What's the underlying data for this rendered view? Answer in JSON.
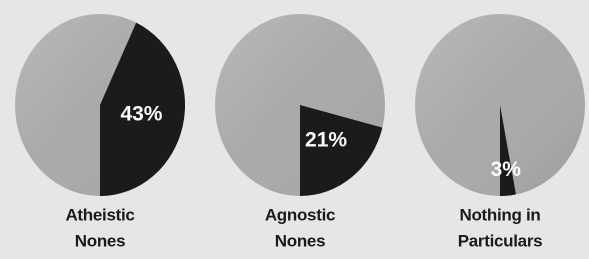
{
  "chart_data": [
    {
      "type": "pie",
      "title": [
        "Atheistic",
        "Nones"
      ],
      "values": [
        43
      ],
      "value_labels": [
        "43%"
      ],
      "color": "#1b1b1b",
      "background_color": "#a9a9a9"
    },
    {
      "type": "pie",
      "title": [
        "Agnostic",
        "Nones"
      ],
      "values": [
        21
      ],
      "value_labels": [
        "21%"
      ],
      "color": "#1b1b1b",
      "background_color": "#a9a9a9"
    },
    {
      "type": "pie",
      "title": [
        "Nothing in",
        "Particulars"
      ],
      "values": [
        3
      ],
      "value_labels": [
        "3%"
      ],
      "color": "#1b1b1b",
      "background_color": "#a9a9a9"
    }
  ]
}
